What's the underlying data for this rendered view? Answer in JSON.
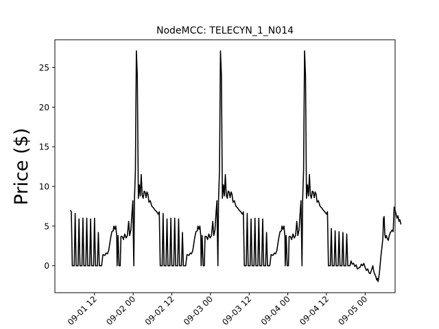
{
  "chart_data": {
    "type": "line",
    "title": "NodeMCC: TELECYN_1_N014",
    "xlabel": "",
    "ylabel": "Price ($)",
    "x_unit": "hours since 2019-09-01 00:00",
    "x_ticks": [
      {
        "value": 12,
        "label": "09-01 12"
      },
      {
        "value": 24,
        "label": "09-02 00"
      },
      {
        "value": 36,
        "label": "09-02 12"
      },
      {
        "value": 48,
        "label": "09-03 00"
      },
      {
        "value": 60,
        "label": "09-03 12"
      },
      {
        "value": 72,
        "label": "09-04 00"
      },
      {
        "value": 84,
        "label": "09-04 12"
      },
      {
        "value": 96,
        "label": "09-05 00"
      }
    ],
    "y_ticks": [
      0,
      5,
      10,
      15,
      20,
      25
    ],
    "xlim": [
      -0.3,
      105.3
    ],
    "ylim": [
      -3.4,
      28.5
    ],
    "grid": false,
    "series": [
      {
        "name": "",
        "color": "#000000",
        "points": [
          [
            4.5,
            7.0
          ],
          [
            4.8,
            6.8
          ],
          [
            5.1,
            0
          ],
          [
            5.7,
            0
          ],
          [
            6.0,
            6.6
          ],
          [
            6.3,
            0
          ],
          [
            6.9,
            0
          ],
          [
            7.2,
            5.9
          ],
          [
            7.5,
            0
          ],
          [
            8.1,
            0
          ],
          [
            8.4,
            6.0
          ],
          [
            8.7,
            0
          ],
          [
            9.3,
            0
          ],
          [
            9.6,
            6.0
          ],
          [
            9.9,
            0
          ],
          [
            10.5,
            0
          ],
          [
            10.8,
            5.9
          ],
          [
            11.1,
            0
          ],
          [
            11.7,
            0
          ],
          [
            12.0,
            6.0
          ],
          [
            12.3,
            0
          ],
          [
            12.9,
            0
          ],
          [
            13.2,
            4.2
          ],
          [
            13.5,
            0
          ],
          [
            14.2,
            0
          ],
          [
            14.6,
            1.4
          ],
          [
            15.2,
            1.3
          ],
          [
            15.6,
            1.6
          ],
          [
            16.0,
            1.5
          ],
          [
            16.4,
            1.9
          ],
          [
            17.0,
            3.5
          ],
          [
            17.4,
            4.3
          ],
          [
            17.8,
            4.4
          ],
          [
            18.0,
            5.0
          ],
          [
            18.3,
            4.6
          ],
          [
            18.6,
            5.0
          ],
          [
            18.9,
            3.7
          ],
          [
            19.0,
            0
          ],
          [
            19.3,
            3.8
          ],
          [
            19.6,
            0
          ],
          [
            20.0,
            0
          ],
          [
            20.2,
            3.7
          ],
          [
            20.6,
            3.7
          ],
          [
            21.0,
            3.3
          ],
          [
            21.4,
            4.0
          ],
          [
            21.8,
            3.5
          ],
          [
            22.2,
            3.8
          ],
          [
            22.6,
            5.6
          ],
          [
            22.9,
            3.8
          ],
          [
            23.3,
            4.5
          ],
          [
            23.6,
            6.5
          ],
          [
            23.9,
            8.2
          ],
          [
            24.0,
            5.2
          ],
          [
            24.2,
            0
          ],
          [
            24.4,
            8.3
          ],
          [
            24.7,
            12.0
          ],
          [
            25.0,
            27.1
          ],
          [
            25.3,
            24.0
          ],
          [
            25.6,
            8.5
          ],
          [
            25.9,
            10.2
          ],
          [
            26.2,
            8.8
          ],
          [
            26.5,
            11.5
          ],
          [
            26.8,
            8.9
          ],
          [
            27.1,
            8.5
          ],
          [
            27.4,
            9.4
          ],
          [
            27.7,
            9.3
          ],
          [
            28.0,
            8.6
          ],
          [
            28.3,
            9.3
          ],
          [
            28.6,
            9.0
          ],
          [
            28.9,
            8.0
          ],
          [
            29.3,
            8.2
          ],
          [
            29.8,
            7.5
          ],
          [
            30.3,
            7.3
          ],
          [
            30.8,
            7.0
          ],
          [
            31.3,
            6.8
          ],
          [
            31.8,
            6.5
          ],
          [
            32.1,
            6.8
          ],
          [
            32.4,
            0
          ],
          [
            33.0,
            0
          ],
          [
            33.3,
            6.6
          ],
          [
            33.6,
            0
          ],
          [
            34.2,
            0
          ],
          [
            34.5,
            5.9
          ],
          [
            34.8,
            0
          ],
          [
            35.4,
            0
          ],
          [
            35.7,
            6.0
          ],
          [
            36.0,
            0
          ],
          [
            36.6,
            0
          ],
          [
            36.9,
            6.0
          ],
          [
            37.2,
            0
          ],
          [
            37.8,
            0
          ],
          [
            38.1,
            5.9
          ],
          [
            38.4,
            0
          ],
          [
            39.0,
            0
          ],
          [
            39.3,
            4.2
          ],
          [
            39.6,
            0
          ],
          [
            40.3,
            0
          ],
          [
            40.7,
            1.4
          ],
          [
            41.3,
            1.3
          ],
          [
            41.7,
            1.6
          ],
          [
            42.1,
            1.5
          ],
          [
            42.5,
            1.9
          ],
          [
            43.1,
            3.5
          ],
          [
            43.5,
            4.3
          ],
          [
            43.9,
            4.4
          ],
          [
            44.1,
            5.0
          ],
          [
            44.4,
            4.6
          ],
          [
            44.7,
            5.0
          ],
          [
            45.0,
            3.7
          ],
          [
            45.1,
            0
          ],
          [
            45.4,
            3.8
          ],
          [
            45.7,
            0
          ],
          [
            46.1,
            0
          ],
          [
            46.3,
            3.7
          ],
          [
            46.7,
            3.7
          ],
          [
            47.1,
            3.3
          ],
          [
            47.5,
            4.0
          ],
          [
            47.9,
            3.5
          ],
          [
            48.3,
            3.8
          ],
          [
            48.7,
            5.6
          ],
          [
            49.0,
            3.8
          ],
          [
            49.4,
            4.5
          ],
          [
            49.7,
            6.5
          ],
          [
            50.0,
            8.2
          ],
          [
            50.1,
            5.2
          ],
          [
            50.3,
            0
          ],
          [
            50.5,
            8.3
          ],
          [
            50.8,
            12.0
          ],
          [
            51.1,
            27.1
          ],
          [
            51.4,
            24.0
          ],
          [
            51.7,
            8.5
          ],
          [
            52.0,
            10.2
          ],
          [
            52.3,
            8.8
          ],
          [
            52.6,
            11.5
          ],
          [
            52.9,
            8.9
          ],
          [
            53.2,
            8.5
          ],
          [
            53.5,
            9.4
          ],
          [
            53.8,
            9.3
          ],
          [
            54.1,
            8.6
          ],
          [
            54.4,
            9.3
          ],
          [
            54.7,
            9.0
          ],
          [
            55.0,
            8.0
          ],
          [
            55.4,
            8.2
          ],
          [
            55.9,
            7.5
          ],
          [
            56.4,
            7.3
          ],
          [
            56.9,
            7.0
          ],
          [
            57.4,
            6.8
          ],
          [
            57.9,
            6.5
          ],
          [
            58.2,
            6.8
          ],
          [
            58.5,
            0
          ],
          [
            59.1,
            0
          ],
          [
            59.4,
            6.6
          ],
          [
            59.7,
            0
          ],
          [
            60.3,
            0
          ],
          [
            60.6,
            5.9
          ],
          [
            60.9,
            0
          ],
          [
            61.5,
            0
          ],
          [
            61.8,
            6.0
          ],
          [
            62.1,
            0
          ],
          [
            62.7,
            0
          ],
          [
            63.0,
            6.0
          ],
          [
            63.3,
            0
          ],
          [
            63.9,
            0
          ],
          [
            64.2,
            5.9
          ],
          [
            64.5,
            0
          ],
          [
            65.1,
            0
          ],
          [
            65.4,
            4.2
          ],
          [
            65.7,
            0
          ],
          [
            66.4,
            0
          ],
          [
            66.8,
            1.4
          ],
          [
            67.4,
            1.3
          ],
          [
            67.8,
            1.6
          ],
          [
            68.2,
            1.5
          ],
          [
            68.6,
            1.9
          ],
          [
            69.2,
            3.5
          ],
          [
            69.6,
            4.3
          ],
          [
            70.0,
            4.4
          ],
          [
            70.2,
            5.0
          ],
          [
            70.5,
            4.6
          ],
          [
            70.8,
            5.0
          ],
          [
            71.1,
            3.7
          ],
          [
            71.2,
            0
          ],
          [
            71.5,
            3.8
          ],
          [
            71.8,
            0
          ],
          [
            72.2,
            0
          ],
          [
            72.4,
            3.7
          ],
          [
            72.8,
            3.7
          ],
          [
            73.2,
            3.3
          ],
          [
            73.6,
            4.0
          ],
          [
            74.0,
            3.5
          ],
          [
            74.4,
            3.8
          ],
          [
            74.8,
            5.6
          ],
          [
            75.1,
            3.8
          ],
          [
            75.5,
            4.5
          ],
          [
            75.8,
            6.5
          ],
          [
            76.1,
            8.2
          ],
          [
            76.2,
            5.2
          ],
          [
            76.4,
            0
          ],
          [
            76.6,
            8.3
          ],
          [
            76.9,
            12.0
          ],
          [
            77.2,
            27.1
          ],
          [
            77.5,
            24.0
          ],
          [
            77.8,
            8.5
          ],
          [
            78.1,
            10.2
          ],
          [
            78.4,
            8.8
          ],
          [
            78.7,
            11.5
          ],
          [
            79.0,
            8.9
          ],
          [
            79.3,
            8.5
          ],
          [
            79.6,
            9.4
          ],
          [
            79.9,
            9.3
          ],
          [
            80.2,
            8.6
          ],
          [
            80.5,
            9.3
          ],
          [
            80.8,
            9.0
          ],
          [
            81.1,
            8.0
          ],
          [
            81.5,
            8.2
          ],
          [
            82.0,
            7.5
          ],
          [
            82.5,
            7.3
          ],
          [
            83.0,
            7.0
          ],
          [
            83.5,
            6.8
          ],
          [
            84.0,
            6.5
          ],
          [
            84.3,
            6.8
          ],
          [
            84.6,
            0
          ],
          [
            85.2,
            0
          ],
          [
            85.5,
            4.7
          ],
          [
            85.8,
            0
          ],
          [
            86.4,
            0
          ],
          [
            86.7,
            4.4
          ],
          [
            87.0,
            0
          ],
          [
            87.6,
            0
          ],
          [
            87.9,
            4.3
          ],
          [
            88.2,
            0
          ],
          [
            88.8,
            0
          ],
          [
            89.1,
            4.2
          ],
          [
            89.4,
            0
          ],
          [
            90.0,
            0
          ],
          [
            90.3,
            4.0
          ],
          [
            90.6,
            0
          ],
          [
            91.3,
            0
          ],
          [
            91.6,
            0.6
          ],
          [
            92.0,
            0.2
          ],
          [
            92.4,
            0.3
          ],
          [
            92.8,
            -0.1
          ],
          [
            93.2,
            0.1
          ],
          [
            93.6,
            -0.4
          ],
          [
            94.0,
            -0.3
          ],
          [
            94.4,
            -0.2
          ],
          [
            94.8,
            0.2
          ],
          [
            95.2,
            0.0
          ],
          [
            95.6,
            0.3
          ],
          [
            96.0,
            -0.2
          ],
          [
            96.4,
            -0.6
          ],
          [
            96.8,
            -0.4
          ],
          [
            97.2,
            -0.9
          ],
          [
            97.6,
            -1.0
          ],
          [
            98.0,
            -0.5
          ],
          [
            98.4,
            0.0
          ],
          [
            98.6,
            -0.5
          ],
          [
            98.8,
            -0.9
          ],
          [
            99.0,
            -1.1
          ],
          [
            99.2,
            -1.2
          ],
          [
            99.4,
            -1.5
          ],
          [
            99.6,
            -1.8
          ],
          [
            99.8,
            -1.6
          ],
          [
            100.0,
            -2.0
          ],
          [
            100.2,
            -1.6
          ],
          [
            100.4,
            -1.0
          ],
          [
            100.6,
            -0.2
          ],
          [
            100.8,
            0.8
          ],
          [
            101.0,
            1.6
          ],
          [
            101.2,
            2.2
          ],
          [
            101.5,
            3.5
          ],
          [
            101.7,
            6.0
          ],
          [
            101.9,
            6.2
          ],
          [
            102.1,
            4.0
          ],
          [
            102.3,
            3.5
          ],
          [
            102.6,
            3.8
          ],
          [
            102.9,
            3.4
          ],
          [
            103.2,
            3.2
          ],
          [
            103.5,
            3.8
          ],
          [
            103.8,
            4.2
          ],
          [
            104.1,
            4.3
          ],
          [
            104.4,
            4.5
          ],
          [
            104.7,
            4.3
          ],
          [
            105.0,
            7.4
          ],
          [
            105.3,
            7.0
          ],
          [
            105.6,
            6.5
          ],
          [
            105.9,
            6.0
          ],
          [
            106.2,
            6.3
          ],
          [
            106.5,
            5.6
          ],
          [
            106.8,
            5.8
          ],
          [
            107.1,
            5.2
          ]
        ]
      }
    ]
  }
}
